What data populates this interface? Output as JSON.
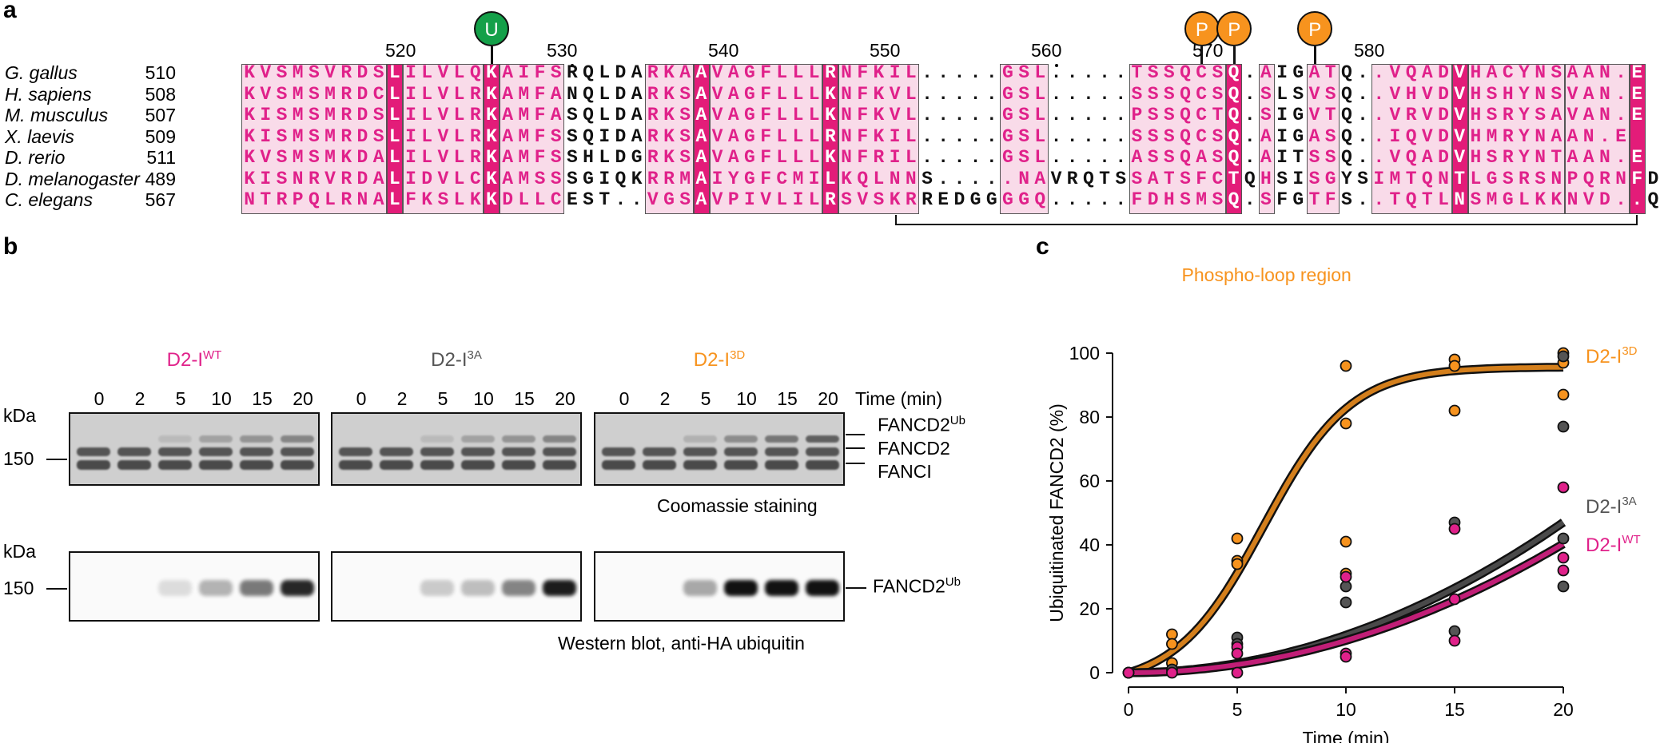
{
  "panels": {
    "a": "a",
    "b": "b",
    "c": "c"
  },
  "alignment": {
    "ruler": [
      "520",
      "530",
      "540",
      "550",
      "560",
      "570",
      "580"
    ],
    "markers": [
      {
        "label": "U",
        "color": "#14a049"
      },
      {
        "label": "P",
        "color": "#f7931e"
      },
      {
        "label": "P",
        "color": "#f7931e"
      },
      {
        "label": "P",
        "color": "#f7931e"
      }
    ],
    "rows": [
      {
        "species": "G. gallus",
        "start": "510",
        "seq": "KVSMSVRDSLILVLQKAIFSRQLDARKAAVAGFLLLRNFKIL.....GSL.....TSSQCSQ.AIGATQ..VQADVHACYNSAAN.E"
      },
      {
        "species": "H. sapiens",
        "start": "508",
        "seq": "KVSMSMRDCLILVLRKAMFANQLDARKSAVAGFLLLKNFKVL.....GSL.....SSSQCSQ.SLSVSQ..VHVDVHSHYNSVAN.E"
      },
      {
        "species": "M. musculus",
        "start": "507",
        "seq": "KISMSMRDSLILVLRKAMFASQLDARKSAVAGFLLLKNFKVL.....GSL.....PSSQCTQ.SIGVTQ..VRVDVHSRYSAVAN.E"
      },
      {
        "species": "X. laevis",
        "start": "509",
        "seq": "KISMSMRDSLILVLRKAMFSSQIDARKSAVAGFLLLRNFKIL.....GSL.....SSSQCSQ.AIGASQ..IQVDVHMRYNAAN.E"
      },
      {
        "species": "D. rerio",
        "start": "511",
        "seq": "KVSMSMKDALILVLRKAMFSSHLDGRKSAVAGFLLLKNFRIL.....GSL.....ASSQASQ.AITSSQ..VQADVHSRYNTAAN.E"
      },
      {
        "species": "D. melanogaster",
        "start": "489",
        "seq": "KISNRVRDALIDVLCKAMSSSGIQKRRMAIYGFCMILKQLNNS.....NAVRQTSSATSFCTQHSISGYSIMTQNTLGSRSNPQRNFD"
      },
      {
        "species": "C. elegans",
        "start": "567",
        "seq": "NTRPQLRNALFKSLKKDLLCEST..VGSAVPIVLILRSVSKRREDGGGGQ.....FDHSMSQ.SFGTFS..TQTLNSMGLKKNVD..Q"
      }
    ],
    "bracket_label": "Phospho-loop region"
  },
  "gels": {
    "conditions": [
      {
        "base": "D2-I",
        "sup": "WT",
        "color": "#e0218a"
      },
      {
        "base": "D2-I",
        "sup": "3A",
        "color": "#555555"
      },
      {
        "base": "D2-I",
        "sup": "3D",
        "color": "#f7931e"
      }
    ],
    "timepoints": [
      "0",
      "2",
      "5",
      "10",
      "15",
      "20"
    ],
    "time_label": "Time (min)",
    "kda": "kDa",
    "marker_150": "150",
    "band_labels": [
      {
        "base": "FANCD2",
        "sup": "Ub"
      },
      {
        "base": "FANCD2",
        "sup": ""
      },
      {
        "base": "FANCI",
        "sup": ""
      }
    ],
    "coomassie_caption": "Coomassie staining",
    "western_label": {
      "base": "FANCD2",
      "sup": "Ub"
    },
    "western_caption": "Western blot, anti-HA ubiquitin",
    "western_intensity": [
      [
        0,
        0,
        0.12,
        0.3,
        0.55,
        0.9
      ],
      [
        0,
        0,
        0.2,
        0.25,
        0.5,
        0.95
      ],
      [
        0,
        0,
        0.35,
        1,
        1,
        1
      ]
    ]
  },
  "chart_data": {
    "type": "scatter",
    "xlabel": "Time (min)",
    "ylabel": "Ubiquitinated FANCD2 (%)",
    "xlim": [
      0,
      20
    ],
    "ylim": [
      0,
      100
    ],
    "xticks": [
      "0",
      "5",
      "10",
      "15",
      "20"
    ],
    "yticks": [
      "0",
      "20",
      "40",
      "60",
      "80",
      "100"
    ],
    "series": [
      {
        "name": "D2-I3D",
        "label_base": "D2-I",
        "label_sup": "3D",
        "color": "#f7931e",
        "points": [
          [
            0,
            0
          ],
          [
            2,
            12
          ],
          [
            2,
            9
          ],
          [
            2,
            3
          ],
          [
            5,
            42
          ],
          [
            5,
            35
          ],
          [
            5,
            34
          ],
          [
            10,
            96
          ],
          [
            10,
            78
          ],
          [
            10,
            41
          ],
          [
            10,
            31
          ],
          [
            15,
            98
          ],
          [
            15,
            96
          ],
          [
            15,
            82
          ],
          [
            20,
            100
          ],
          [
            20,
            97
          ],
          [
            20,
            87
          ]
        ],
        "fit": {
          "k": 0.06,
          "mid": 6.2,
          "max": 100
        }
      },
      {
        "name": "D2-I3A",
        "label_base": "D2-I",
        "label_sup": "3A",
        "color": "#555555",
        "points": [
          [
            0,
            0
          ],
          [
            2,
            1
          ],
          [
            5,
            11
          ],
          [
            5,
            9
          ],
          [
            10,
            27
          ],
          [
            10,
            22
          ],
          [
            15,
            47
          ],
          [
            15,
            13
          ],
          [
            20,
            99
          ],
          [
            20,
            77
          ],
          [
            20,
            42
          ],
          [
            20,
            27
          ]
        ],
        "fit": {
          "k": 0.0028,
          "mid": 0,
          "max": 100
        }
      },
      {
        "name": "D2-IWT",
        "label_base": "D2-I",
        "label_sup": "WT",
        "color": "#e0218a",
        "points": [
          [
            0,
            0
          ],
          [
            2,
            0
          ],
          [
            5,
            8
          ],
          [
            5,
            6
          ],
          [
            5,
            0
          ],
          [
            10,
            30
          ],
          [
            10,
            6
          ],
          [
            10,
            5
          ],
          [
            15,
            45
          ],
          [
            15,
            23
          ],
          [
            15,
            10
          ],
          [
            20,
            58
          ],
          [
            20,
            36
          ],
          [
            20,
            32
          ]
        ],
        "fit": {
          "k": 0.0024,
          "mid": 0,
          "max": 100
        }
      }
    ]
  }
}
